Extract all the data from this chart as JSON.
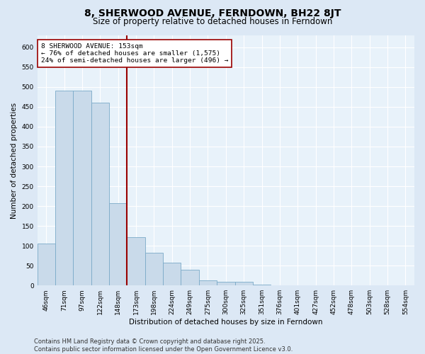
{
  "title": "8, SHERWOOD AVENUE, FERNDOWN, BH22 8JT",
  "subtitle": "Size of property relative to detached houses in Ferndown",
  "xlabel": "Distribution of detached houses by size in Ferndown",
  "ylabel": "Number of detached properties",
  "categories": [
    "46sqm",
    "71sqm",
    "97sqm",
    "122sqm",
    "148sqm",
    "173sqm",
    "198sqm",
    "224sqm",
    "249sqm",
    "275sqm",
    "300sqm",
    "325sqm",
    "351sqm",
    "376sqm",
    "401sqm",
    "427sqm",
    "452sqm",
    "478sqm",
    "503sqm",
    "528sqm",
    "554sqm"
  ],
  "bar_heights": [
    105,
    490,
    490,
    460,
    207,
    122,
    82,
    57,
    40,
    13,
    10,
    10,
    3,
    0,
    0,
    0,
    0,
    0,
    0,
    0,
    0
  ],
  "bar_color": "#c9daea",
  "bar_edge_color": "#7aaac8",
  "vline_color": "#990000",
  "vline_x_idx": 4.5,
  "annotation_text": "8 SHERWOOD AVENUE: 153sqm\n← 76% of detached houses are smaller (1,575)\n24% of semi-detached houses are larger (496) →",
  "annotation_box_facecolor": "#ffffff",
  "annotation_box_edgecolor": "#990000",
  "ylim": [
    0,
    630
  ],
  "yticks": [
    0,
    50,
    100,
    150,
    200,
    250,
    300,
    350,
    400,
    450,
    500,
    550,
    600
  ],
  "footer_text": "Contains HM Land Registry data © Crown copyright and database right 2025.\nContains public sector information licensed under the Open Government Licence v3.0.",
  "bg_color": "#dce8f5",
  "plot_bg_color": "#e8f2fa",
  "grid_color": "#ffffff",
  "title_fontsize": 10,
  "subtitle_fontsize": 8.5,
  "axis_label_fontsize": 7.5,
  "tick_fontsize": 6.5,
  "annotation_fontsize": 6.8,
  "footer_fontsize": 6.0
}
